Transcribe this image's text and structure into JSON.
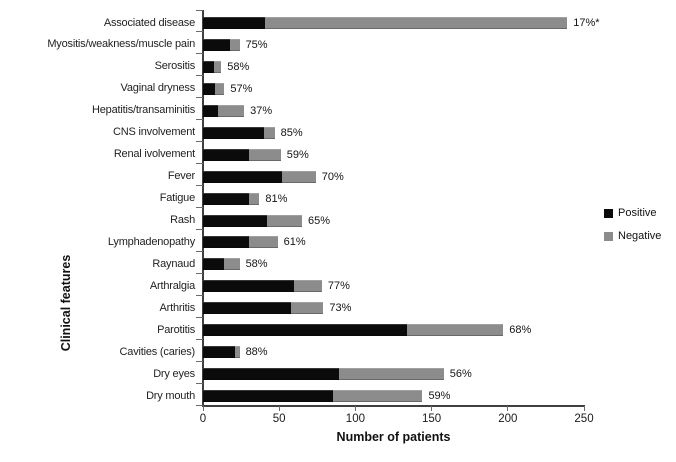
{
  "chart_data": {
    "type": "bar",
    "orientation": "horizontal",
    "stacked": true,
    "xlabel": "Number of patients",
    "ylabel": "Clinical features",
    "xlim": [
      0,
      250
    ],
    "xticks": [
      0,
      50,
      100,
      150,
      200,
      250
    ],
    "grid": false,
    "legend_position": "right",
    "categories": [
      "Associated disease",
      "Myositis/weakness/muscle pain",
      "Serositis",
      "Vaginal dryness",
      "Hepatitis/transaminitis",
      "CNS involvement",
      "Renal ivolvement",
      "Fever",
      "Fatigue",
      "Rash",
      "Lymphadenopathy",
      "Raynaud",
      "Arthralgia",
      "Arthritis",
      "Parotitis",
      "Cavities (caries)",
      "Dry eyes",
      "Dry mouth"
    ],
    "series": [
      {
        "name": "Positive",
        "color": "#0b0b0b",
        "values": [
          41,
          18,
          7,
          8,
          10,
          40,
          30,
          52,
          30,
          42,
          30,
          14,
          60,
          58,
          134,
          21,
          89,
          85
        ]
      },
      {
        "name": "Negative",
        "color": "#8c8c8c",
        "values": [
          198,
          6,
          5,
          6,
          17,
          7,
          21,
          22,
          7,
          23,
          19,
          10,
          18,
          21,
          63,
          3,
          69,
          59
        ]
      }
    ],
    "bar_labels": [
      "17%*",
      "75%",
      "58%",
      "57%",
      "37%",
      "85%",
      "59%",
      "70%",
      "81%",
      "65%",
      "61%",
      "58%",
      "77%",
      "73%",
      "68%",
      "88%",
      "56%",
      "59%"
    ]
  },
  "colors": {
    "positive": "#0b0b0b",
    "negative": "#8c8c8c",
    "axis": "#3f3f3f",
    "background": "#ffffff"
  }
}
